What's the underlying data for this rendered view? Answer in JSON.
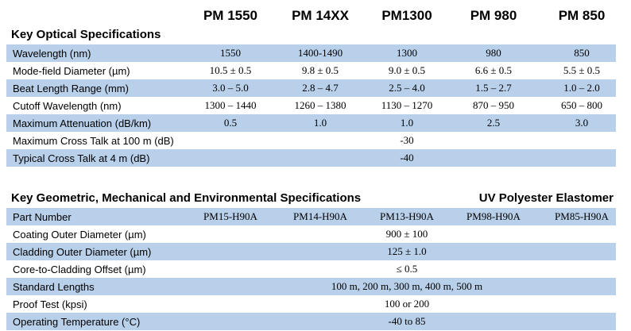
{
  "headers": [
    "PM 1550",
    "PM 14XX",
    "PM1300",
    "PM 980",
    "PM 850"
  ],
  "optical": {
    "title": "Key Optical Specifications",
    "rows": [
      {
        "label": "Wavelength (nm)",
        "values": [
          "1550",
          "1400-1490",
          "1300",
          "980",
          "850"
        ]
      },
      {
        "label": "Mode-field Diameter (µm)",
        "values": [
          "10.5 ± 0.5",
          "9.8 ± 0.5",
          "9.0 ± 0.5",
          "6.6 ± 0.5",
          "5.5 ± 0.5"
        ]
      },
      {
        "label": "Beat Length Range (mm)",
        "values": [
          "3.0 – 5.0",
          "2.8 – 4.7",
          "2.5 – 4.0",
          "1.5 – 2.7",
          "1.0 – 2.0"
        ]
      },
      {
        "label": "Cutoff Wavelength (nm)",
        "values": [
          "1300 – 1440",
          "1260 – 1380",
          "1130 – 1270",
          "870 – 950",
          "650 – 800"
        ]
      },
      {
        "label": "Maximum Attenuation (dB/km)",
        "values": [
          "0.5",
          "1.0",
          "1.0",
          "2.5",
          "3.0"
        ]
      },
      {
        "label": "Maximum Cross Talk at 100 m (dB)",
        "span": "-30"
      },
      {
        "label": "Typical Cross Talk at 4 m (dB)",
        "span": "-40"
      }
    ]
  },
  "geometric": {
    "title": "Key Geometric, Mechanical and Environmental Specifications",
    "right_title": "UV Polyester Elastomer",
    "rows": [
      {
        "label": "Part Number",
        "values": [
          "PM15-H90A",
          "PM14-H90A",
          "PM13-H90A",
          "PM98-H90A",
          "PM85-H90A"
        ]
      },
      {
        "label": "Coating Outer Diameter (µm)",
        "span": "900 ± 100"
      },
      {
        "label": "Cladding Outer Diameter (µm)",
        "span": "125 ± 1.0"
      },
      {
        "label": "Core-to-Cladding Offset (µm)",
        "span": "≤ 0.5"
      },
      {
        "label": "Standard Lengths",
        "span": "100 m, 200 m, 300 m, 400 m, 500 m"
      },
      {
        "label": "Proof Test (kpsi)",
        "span": "100 or 200"
      },
      {
        "label": "Operating Temperature (°C)",
        "span": "-40 to 85"
      }
    ]
  }
}
